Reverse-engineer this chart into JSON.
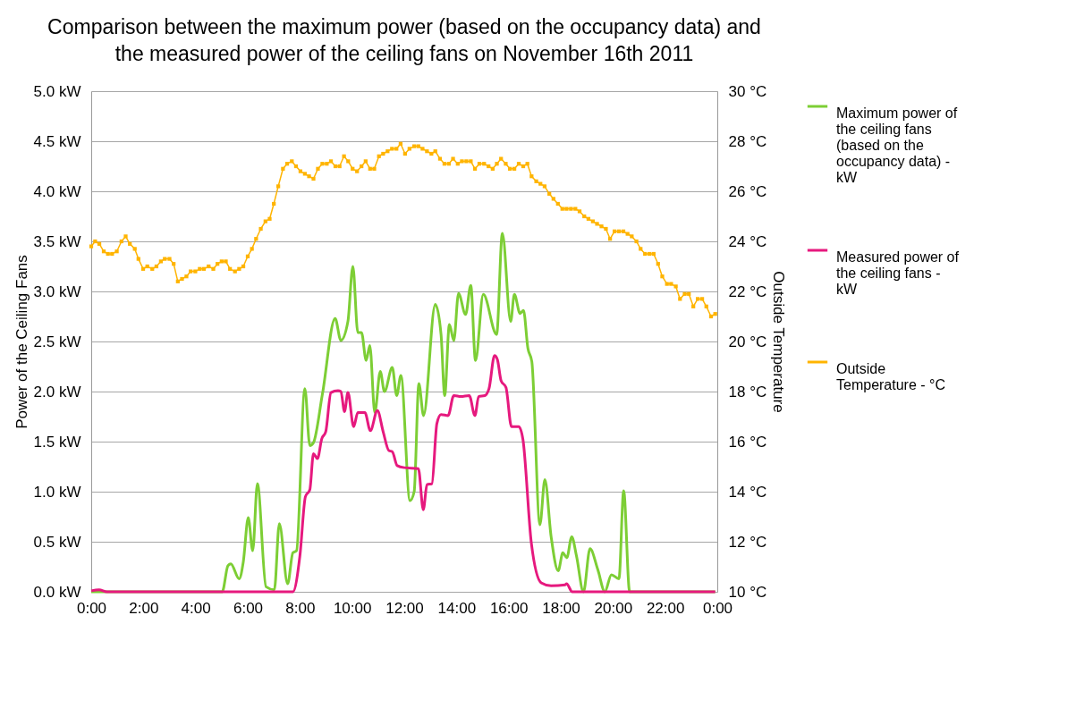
{
  "chart_data": {
    "type": "line",
    "title": "Comparison between the maximum power (based on the occupancy data) and the measured power of the ceiling fans on November 16th 2011",
    "ylabel": "Power of the Ceiling Fans",
    "y2label": "Outside Temperature",
    "xlim": [
      0,
      24
    ],
    "xticks": [
      {
        "value": 0,
        "label": "0:00"
      },
      {
        "value": 2,
        "label": "2:00"
      },
      {
        "value": 4,
        "label": "4:00"
      },
      {
        "value": 6,
        "label": "6:00"
      },
      {
        "value": 8,
        "label": "8:00"
      },
      {
        "value": 10,
        "label": "10:00"
      },
      {
        "value": 12,
        "label": "12:00"
      },
      {
        "value": 14,
        "label": "14:00"
      },
      {
        "value": 16,
        "label": "16:00"
      },
      {
        "value": 18,
        "label": "18:00"
      },
      {
        "value": 20,
        "label": "20:00"
      },
      {
        "value": 22,
        "label": "22:00"
      },
      {
        "value": 24,
        "label": "0:00"
      }
    ],
    "ylim": [
      0,
      5
    ],
    "yticks": [
      {
        "value": 0,
        "label": "0.0 kW"
      },
      {
        "value": 0.5,
        "label": "0.5 kW"
      },
      {
        "value": 1,
        "label": "1.0 kW"
      },
      {
        "value": 1.5,
        "label": "1.5 kW"
      },
      {
        "value": 2,
        "label": "2.0 kW"
      },
      {
        "value": 2.5,
        "label": "2.5 kW"
      },
      {
        "value": 3,
        "label": "3.0 kW"
      },
      {
        "value": 3.5,
        "label": "3.5 kW"
      },
      {
        "value": 4,
        "label": "4.0 kW"
      },
      {
        "value": 4.5,
        "label": "4.5 kW"
      },
      {
        "value": 5,
        "label": "5.0 kW"
      }
    ],
    "y2lim": [
      10,
      30
    ],
    "y2ticks": [
      {
        "value": 10,
        "label": "10 °C"
      },
      {
        "value": 12,
        "label": "12 °C"
      },
      {
        "value": 14,
        "label": "14 °C"
      },
      {
        "value": 16,
        "label": "16 °C"
      },
      {
        "value": 18,
        "label": "18 °C"
      },
      {
        "value": 20,
        "label": "20 °C"
      },
      {
        "value": 22,
        "label": "22 °C"
      },
      {
        "value": 24,
        "label": "24 °C"
      },
      {
        "value": 26,
        "label": "26 °C"
      },
      {
        "value": 28,
        "label": "28 °C"
      },
      {
        "value": 30,
        "label": "30 °C"
      }
    ],
    "grid": "y",
    "legend": "right",
    "series": [
      {
        "name": "Maximum power of the ceiling fans (based on the occupancy data) - kW",
        "color": "#7dce35",
        "marker": "none",
        "x": [
          0,
          5.02,
          5.24,
          5.35,
          5.67,
          5.83,
          6.02,
          6.19,
          6.37,
          6.7,
          7.02,
          7.21,
          7.53,
          7.73,
          7.87,
          8.19,
          8.38,
          8.52,
          8.86,
          9.35,
          9.57,
          9.84,
          10.03,
          10.22,
          10.36,
          10.54,
          10.68,
          10.87,
          11.08,
          11.24,
          11.54,
          11.71,
          11.87,
          12.22,
          12.38,
          12.56,
          12.74,
          13.19,
          13.41,
          13.55,
          13.73,
          13.9,
          14.08,
          14.35,
          14.55,
          14.73,
          15.03,
          15.54,
          15.76,
          16.08,
          16.22,
          16.44,
          16.57,
          16.74,
          16.89,
          17.2,
          17.39,
          17.63,
          17.9,
          18.08,
          18.23,
          18.42,
          18.6,
          18.87,
          19.12,
          19.42,
          19.69,
          19.94,
          20.23,
          20.41,
          20.64,
          23.92
        ],
        "values": [
          0,
          0,
          0.26,
          0.28,
          0.13,
          0.3,
          0.74,
          0.41,
          1.08,
          0.05,
          0.02,
          0.68,
          0.08,
          0.39,
          0.41,
          2.03,
          1.46,
          1.49,
          1.97,
          2.73,
          2.51,
          2.7,
          3.25,
          2.59,
          2.59,
          2.31,
          2.46,
          1.79,
          2.2,
          2.0,
          2.24,
          1.96,
          2.16,
          0.91,
          1.0,
          2.08,
          1.76,
          2.87,
          2.57,
          1.96,
          2.67,
          2.51,
          2.98,
          2.77,
          3.06,
          2.31,
          2.97,
          2.57,
          3.58,
          2.7,
          2.97,
          2.78,
          2.81,
          2.43,
          2.3,
          0.67,
          1.12,
          0.55,
          0.21,
          0.39,
          0.34,
          0.55,
          0.36,
          0,
          0.43,
          0.22,
          0,
          0.17,
          0.13,
          1.01,
          0,
          0
        ]
      },
      {
        "name": "Measured power of the ceiling fans - kW",
        "color": "#e6197e",
        "marker": "none",
        "x": [
          0,
          0.3,
          0.6,
          7.6,
          7.73,
          8.0,
          8.21,
          8.38,
          8.52,
          8.67,
          8.84,
          8.99,
          9.19,
          9.46,
          9.57,
          9.71,
          9.84,
          10.06,
          10.22,
          10.49,
          10.7,
          10.97,
          11.19,
          11.41,
          11.54,
          11.73,
          12.0,
          12.54,
          12.73,
          12.87,
          13.06,
          13.25,
          13.41,
          13.68,
          13.9,
          14.17,
          14.49,
          14.71,
          14.85,
          15.09,
          15.25,
          15.46,
          15.57,
          15.71,
          15.9,
          16.11,
          16.39,
          16.55,
          16.87,
          17.25,
          17.63,
          18.17,
          18.22,
          18.44,
          23.92
        ],
        "values": [
          0.01,
          0.02,
          0,
          0,
          0,
          0.36,
          0.95,
          1.02,
          1.38,
          1.33,
          1.53,
          1.6,
          1.99,
          2.01,
          2.0,
          1.8,
          1.99,
          1.65,
          1.79,
          1.79,
          1.61,
          1.81,
          1.6,
          1.41,
          1.4,
          1.26,
          1.24,
          1.23,
          0.82,
          1.07,
          1.08,
          1.68,
          1.77,
          1.76,
          1.96,
          1.95,
          1.96,
          1.76,
          1.95,
          1.96,
          2.03,
          2.36,
          2.32,
          2.11,
          2.04,
          1.65,
          1.65,
          1.52,
          0.49,
          0.09,
          0.06,
          0.07,
          0.08,
          0,
          0
        ]
      },
      {
        "name": "Outside Temperature - °C",
        "color": "#ffb400",
        "marker": "square",
        "axis": "y2",
        "x": [
          0,
          0.15,
          0.31,
          0.48,
          0.64,
          0.8,
          0.98,
          1.16,
          1.32,
          1.48,
          1.67,
          1.81,
          1.99,
          2.15,
          2.34,
          2.5,
          2.67,
          2.82,
          3.0,
          3.16,
          3.32,
          3.48,
          3.65,
          3.81,
          3.99,
          4.16,
          4.32,
          4.5,
          4.68,
          4.84,
          5.0,
          5.16,
          5.32,
          5.51,
          5.67,
          5.83,
          6.0,
          6.16,
          6.32,
          6.5,
          6.68,
          6.84,
          7.0,
          7.17,
          7.35,
          7.51,
          7.69,
          7.85,
          8.02,
          8.19,
          8.35,
          8.52,
          8.69,
          8.86,
          9.03,
          9.19,
          9.36,
          9.52,
          9.69,
          9.85,
          10.02,
          10.19,
          10.36,
          10.52,
          10.69,
          10.85,
          11.03,
          11.19,
          11.36,
          11.53,
          11.7,
          11.86,
          12.03,
          12.2,
          12.38,
          12.54,
          12.7,
          12.87,
          13.04,
          13.19,
          13.37,
          13.54,
          13.71,
          13.87,
          14.05,
          14.21,
          14.38,
          14.55,
          14.71,
          14.88,
          15.06,
          15.23,
          15.39,
          15.55,
          15.71,
          15.89,
          16.05,
          16.22,
          16.39,
          16.56,
          16.72,
          16.88,
          17.06,
          17.22,
          17.38,
          17.56,
          17.72,
          17.89,
          18.06,
          18.22,
          18.39,
          18.56,
          18.72,
          18.9,
          19.06,
          19.23,
          19.39,
          19.56,
          19.73,
          19.89,
          20.06,
          20.23,
          20.4,
          20.56,
          20.72,
          20.9,
          21.06,
          21.23,
          21.4,
          21.56,
          21.73,
          21.89,
          22.07,
          22.23,
          22.41,
          22.57,
          22.75,
          22.91,
          23.08,
          23.25,
          23.42,
          23.58,
          23.76,
          23.92
        ],
        "values": [
          23.8,
          24.0,
          23.9,
          23.6,
          23.5,
          23.5,
          23.6,
          24.0,
          24.2,
          23.9,
          23.7,
          23.3,
          22.9,
          23.0,
          22.9,
          23.0,
          23.2,
          23.3,
          23.3,
          23.1,
          22.4,
          22.5,
          22.6,
          22.8,
          22.8,
          22.9,
          22.9,
          23.0,
          22.9,
          23.1,
          23.2,
          23.2,
          22.9,
          22.8,
          22.9,
          23.0,
          23.4,
          23.7,
          24.1,
          24.5,
          24.8,
          24.9,
          25.5,
          26.2,
          26.9,
          27.1,
          27.2,
          27.0,
          26.8,
          26.7,
          26.6,
          26.5,
          26.9,
          27.1,
          27.1,
          27.2,
          27.0,
          27.0,
          27.4,
          27.2,
          26.9,
          26.8,
          27.0,
          27.2,
          26.9,
          26.9,
          27.4,
          27.5,
          27.6,
          27.7,
          27.7,
          27.9,
          27.5,
          27.7,
          27.8,
          27.8,
          27.7,
          27.6,
          27.5,
          27.6,
          27.3,
          27.1,
          27.1,
          27.3,
          27.1,
          27.2,
          27.2,
          27.2,
          26.9,
          27.1,
          27.1,
          27.0,
          26.9,
          27.1,
          27.3,
          27.1,
          26.9,
          26.9,
          27.1,
          27.0,
          27.1,
          26.6,
          26.4,
          26.3,
          26.2,
          25.9,
          25.7,
          25.5,
          25.3,
          25.3,
          25.3,
          25.3,
          25.2,
          25.0,
          24.9,
          24.8,
          24.7,
          24.6,
          24.5,
          24.1,
          24.4,
          24.4,
          24.4,
          24.3,
          24.2,
          24.0,
          23.7,
          23.5,
          23.5,
          23.5,
          23.1,
          22.6,
          22.3,
          22.3,
          22.2,
          21.7,
          21.9,
          21.9,
          21.4,
          21.7,
          21.7,
          21.4,
          21.0,
          21.1
        ]
      }
    ]
  }
}
